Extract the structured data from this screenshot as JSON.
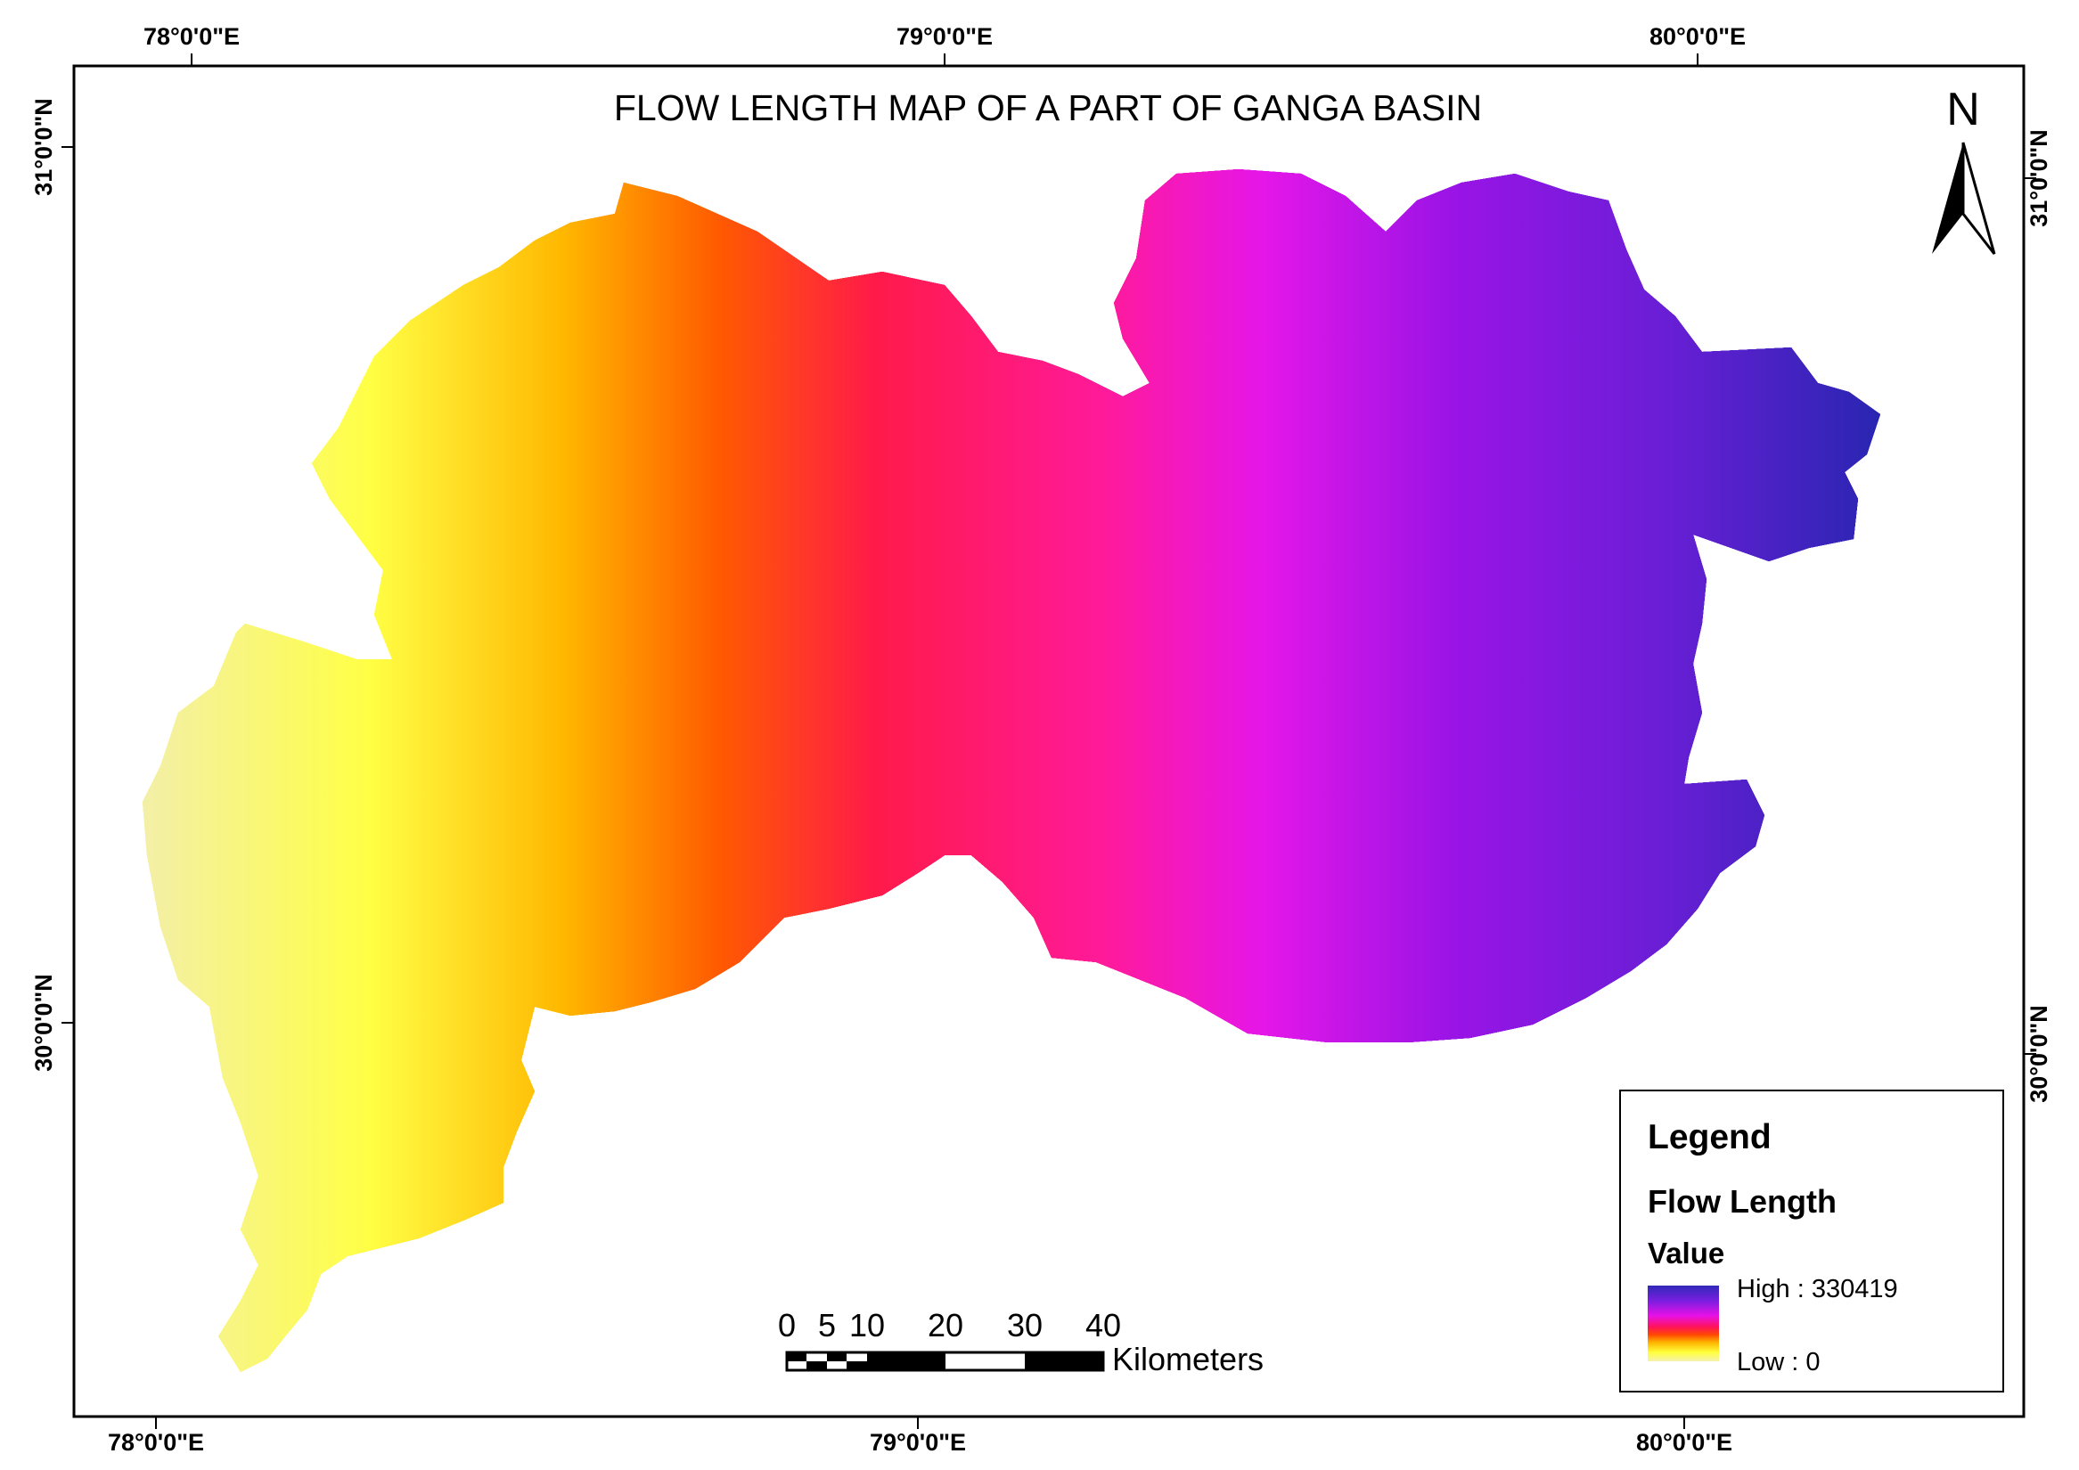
{
  "map": {
    "title": "FLOW LENGTH MAP OF A PART OF GANGA BASIN",
    "north_arrow_label": "N",
    "top_lon_labels": [
      "78°0'0\"E",
      "79°0'0\"E",
      "80°0'0\"E"
    ],
    "bottom_lon_labels": [
      "78°0'0\"E",
      "79°0'0\"E",
      "80°0'0\"E"
    ],
    "left_lat_labels": [
      "31°0'0\"N",
      "30°0'0\"N"
    ],
    "right_lat_labels": [
      "31°0'0\"N",
      "30°0'0\"N"
    ],
    "colors": {
      "high": "#2f2ab8",
      "violet": "#7a1ee0",
      "magenta": "#e811e6",
      "red": "#ff1455",
      "orange": "#ff6a00",
      "yellow": "#ffff3a",
      "low": "#f5f2b0"
    }
  },
  "scalebar": {
    "ticks": [
      "0",
      "5",
      "10",
      "20",
      "30",
      "40"
    ],
    "unit": "Kilometers"
  },
  "legend": {
    "title": "Legend",
    "layer": "Flow Length",
    "value_label": "Value",
    "high_label": "High : 330419",
    "low_label": "Low : 0"
  }
}
